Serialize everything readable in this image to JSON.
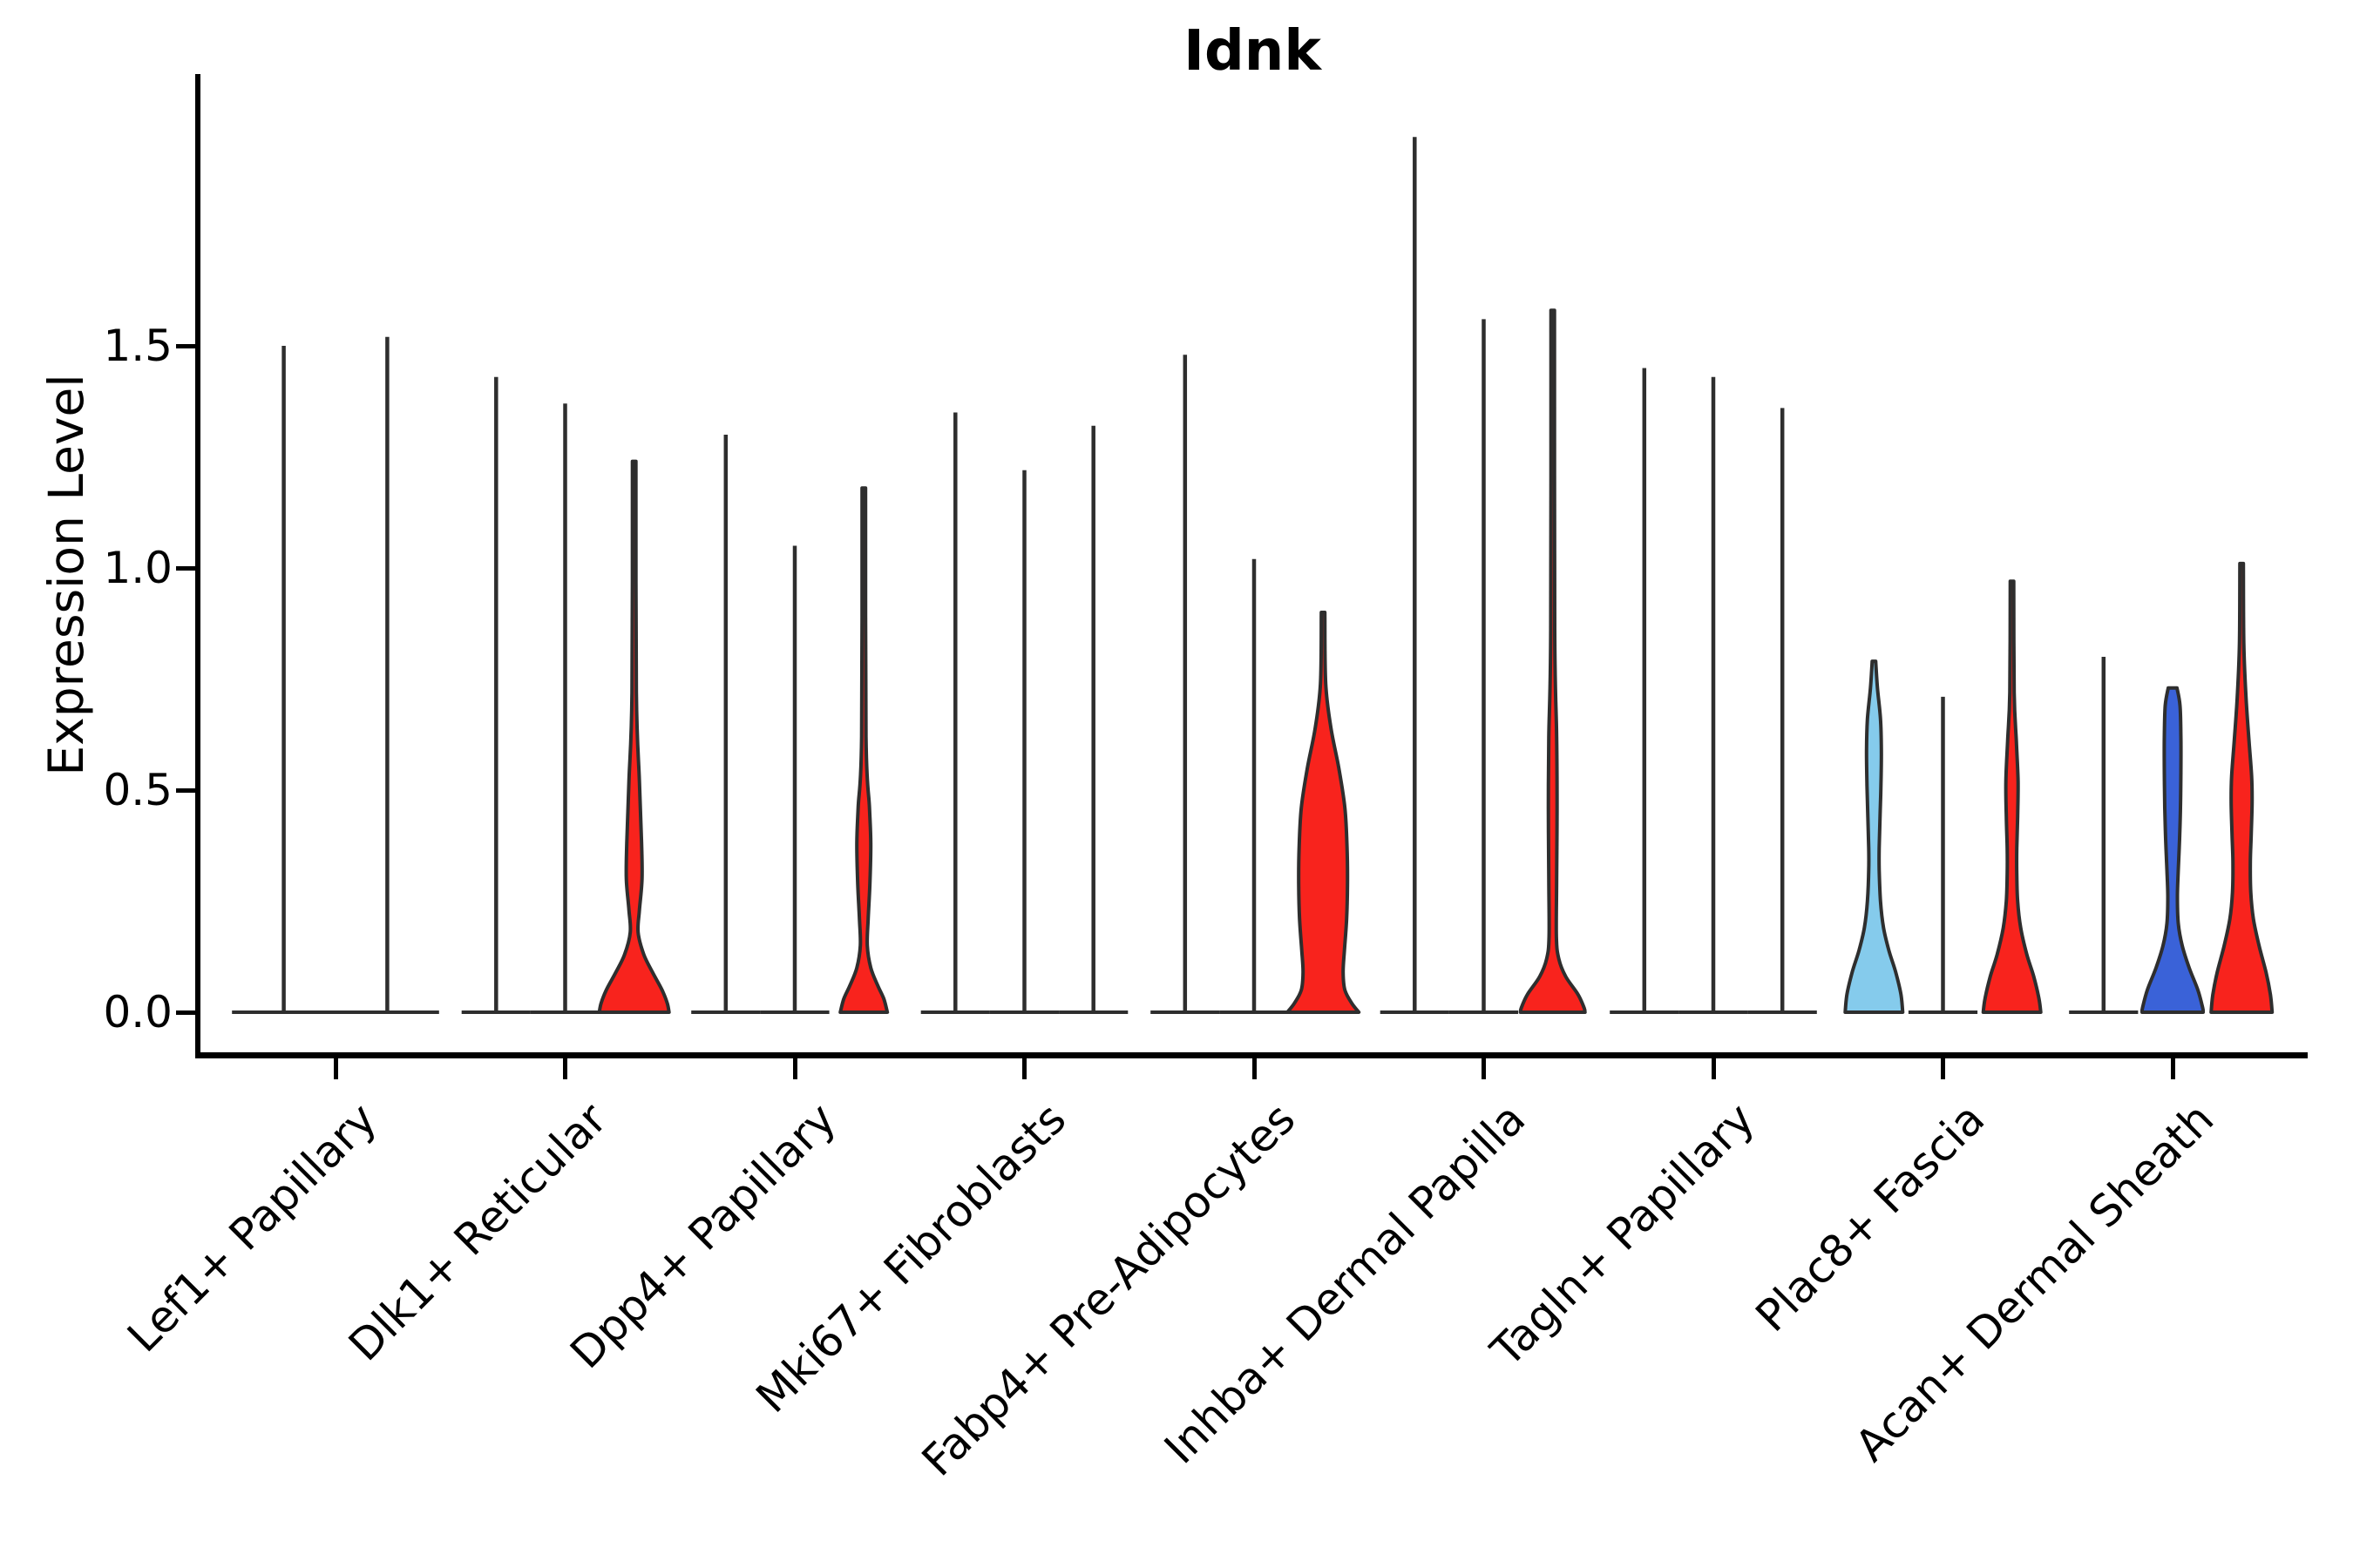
{
  "title": "Idnk",
  "ylabel": "Expression Level",
  "colors": {
    "red": "#F8231D",
    "light_blue": "#85CBEC",
    "dark_blue": "#3A62D8",
    "outline": "#2E2E2E",
    "axis": "#000000",
    "background": "#FFFFFF"
  },
  "chart_data": {
    "type": "violin",
    "title": "Idnk",
    "xlabel": "",
    "ylabel": "Expression Level",
    "ylim": [
      -0.09,
      2.11
    ],
    "yticks": [
      {
        "label": "0.0",
        "value": 0.0
      },
      {
        "label": "0.5",
        "value": 0.5
      },
      {
        "label": "1.0",
        "value": 1.0
      },
      {
        "label": "1.5",
        "value": 1.5
      }
    ],
    "legend": "none",
    "grid": false,
    "categories": [
      "Lef1+ Papillary",
      "Dlk1+ Reticular",
      "Dpp4+ Papillary",
      "Mki67+ Fibroblasts",
      "Fabp4+ Pre-Adipocytes",
      "Inhba+ Dermal Papilla",
      "Tagln+ Papillary",
      "Plac8+ Fascia",
      "Acan+ Dermal Sheath"
    ],
    "groups": [
      {
        "label": "Lef1+ Papillary",
        "violins": [
          {
            "max": 1.5,
            "style": "thin",
            "color": null
          },
          {
            "max": 1.52,
            "style": "thin",
            "color": null
          }
        ]
      },
      {
        "label": "Dlk1+ Reticular",
        "violins": [
          {
            "max": 1.43,
            "style": "thin",
            "color": null
          },
          {
            "max": 1.37,
            "style": "thin",
            "color": null
          },
          {
            "max": 1.24,
            "style": "filled",
            "color": "red",
            "profile": [
              [
                1.24,
                2
              ],
              [
                0.72,
                2.5
              ],
              [
                0.52,
                6
              ],
              [
                0.38,
                8.5
              ],
              [
                0.3,
                9
              ],
              [
                0.23,
                6
              ],
              [
                0.18,
                4.5
              ],
              [
                0.13,
                11
              ],
              [
                0.09,
                21
              ],
              [
                0.05,
                32
              ],
              [
                0.02,
                38
              ],
              [
                0,
                40
              ]
            ]
          }
        ]
      },
      {
        "label": "Dpp4+ Papillary",
        "violins": [
          {
            "max": 1.3,
            "style": "thin",
            "color": null
          },
          {
            "max": 1.05,
            "style": "thin",
            "color": null
          },
          {
            "max": 1.18,
            "style": "filled",
            "color": "red",
            "profile": [
              [
                1.18,
                2
              ],
              [
                0.62,
                2.5
              ],
              [
                0.46,
                6.5
              ],
              [
                0.38,
                8
              ],
              [
                0.29,
                7
              ],
              [
                0.21,
                5
              ],
              [
                0.15,
                4
              ],
              [
                0.1,
                8
              ],
              [
                0.06,
                16
              ],
              [
                0.03,
                23
              ],
              [
                0,
                27
              ]
            ]
          }
        ]
      },
      {
        "label": "Mki67+ Fibroblasts",
        "violins": [
          {
            "max": 1.35,
            "style": "thin",
            "color": null
          },
          {
            "max": 1.22,
            "style": "thin",
            "color": null
          },
          {
            "max": 1.32,
            "style": "thin",
            "color": null
          }
        ]
      },
      {
        "label": "Fabp4+ Pre-Adipocytes",
        "violins": [
          {
            "max": 1.48,
            "style": "thin",
            "color": null
          },
          {
            "max": 1.02,
            "style": "thin",
            "color": null
          },
          {
            "max": 0.9,
            "style": "filled",
            "color": "red",
            "profile": [
              [
                0.9,
                2
              ],
              [
                0.74,
                3
              ],
              [
                0.64,
                9
              ],
              [
                0.55,
                18
              ],
              [
                0.46,
                25
              ],
              [
                0.37,
                27.5
              ],
              [
                0.29,
                28
              ],
              [
                0.21,
                27
              ],
              [
                0.14,
                24.5
              ],
              [
                0.09,
                23
              ],
              [
                0.05,
                25
              ],
              [
                0.02,
                33
              ],
              [
                0,
                41
              ]
            ]
          }
        ]
      },
      {
        "label": "Inhba+ Dermal Papilla",
        "violins": [
          {
            "max": 1.97,
            "style": "thin",
            "color": null
          },
          {
            "max": 1.56,
            "style": "thin",
            "color": null
          },
          {
            "max": 1.58,
            "style": "filled",
            "color": "red",
            "profile": [
              [
                1.58,
                2
              ],
              [
                0.86,
                2.3
              ],
              [
                0.62,
                4.5
              ],
              [
                0.46,
                5
              ],
              [
                0.3,
                4.5
              ],
              [
                0.17,
                4.2
              ],
              [
                0.12,
                7
              ],
              [
                0.08,
                15
              ],
              [
                0.04,
                29
              ],
              [
                0.01,
                36
              ],
              [
                0,
                37
              ]
            ]
          }
        ]
      },
      {
        "label": "Tagln+ Papillary",
        "violins": [
          {
            "max": 1.45,
            "style": "thin",
            "color": null
          },
          {
            "max": 1.43,
            "style": "thin",
            "color": null
          },
          {
            "max": 1.36,
            "style": "thin",
            "color": null
          }
        ]
      },
      {
        "label": "Plac8+ Fascia",
        "violins": [
          {
            "max": 0.79,
            "style": "filled",
            "color": "light_blue",
            "profile": [
              [
                0.79,
                2
              ],
              [
                0.73,
                4
              ],
              [
                0.66,
                7.5
              ],
              [
                0.59,
                8.5
              ],
              [
                0.51,
                8
              ],
              [
                0.44,
                7
              ],
              [
                0.37,
                6
              ],
              [
                0.32,
                6
              ],
              [
                0.25,
                7.5
              ],
              [
                0.19,
                11
              ],
              [
                0.14,
                17
              ],
              [
                0.09,
                25
              ],
              [
                0.04,
                31
              ],
              [
                0,
                33
              ]
            ]
          },
          {
            "max": 0.71,
            "style": "thin",
            "color": null
          },
          {
            "max": 0.97,
            "style": "filled",
            "color": "red",
            "profile": [
              [
                0.97,
                2
              ],
              [
                0.72,
                2.5
              ],
              [
                0.61,
                5
              ],
              [
                0.52,
                7
              ],
              [
                0.44,
                6.5
              ],
              [
                0.37,
                5.5
              ],
              [
                0.31,
                5.5
              ],
              [
                0.25,
                6.5
              ],
              [
                0.19,
                10
              ],
              [
                0.13,
                17
              ],
              [
                0.08,
                25
              ],
              [
                0.03,
                31
              ],
              [
                0,
                33
              ]
            ]
          }
        ]
      },
      {
        "label": "Acan+ Dermal Sheath",
        "violins": [
          {
            "max": 0.8,
            "style": "thin",
            "color": null
          },
          {
            "max": 0.73,
            "style": "filled",
            "color": "dark_blue",
            "profile": [
              [
                0.73,
                5
              ],
              [
                0.69,
                8.5
              ],
              [
                0.62,
                9.5
              ],
              [
                0.54,
                9.5
              ],
              [
                0.46,
                9
              ],
              [
                0.39,
                8
              ],
              [
                0.32,
                6.5
              ],
              [
                0.26,
                5.5
              ],
              [
                0.2,
                6.5
              ],
              [
                0.15,
                11
              ],
              [
                0.1,
                19
              ],
              [
                0.05,
                29
              ],
              [
                0.01,
                34.5
              ],
              [
                0,
                35
              ]
            ]
          },
          {
            "max": 1.01,
            "style": "filled",
            "color": "red",
            "profile": [
              [
                1.01,
                2
              ],
              [
                0.83,
                2.5
              ],
              [
                0.71,
                5
              ],
              [
                0.61,
                8.5
              ],
              [
                0.53,
                11.5
              ],
              [
                0.47,
                12
              ],
              [
                0.4,
                11
              ],
              [
                0.34,
                10
              ],
              [
                0.27,
                10.5
              ],
              [
                0.21,
                13.5
              ],
              [
                0.15,
                20
              ],
              [
                0.09,
                28
              ],
              [
                0.04,
                33
              ],
              [
                0,
                35
              ]
            ]
          }
        ]
      }
    ]
  }
}
